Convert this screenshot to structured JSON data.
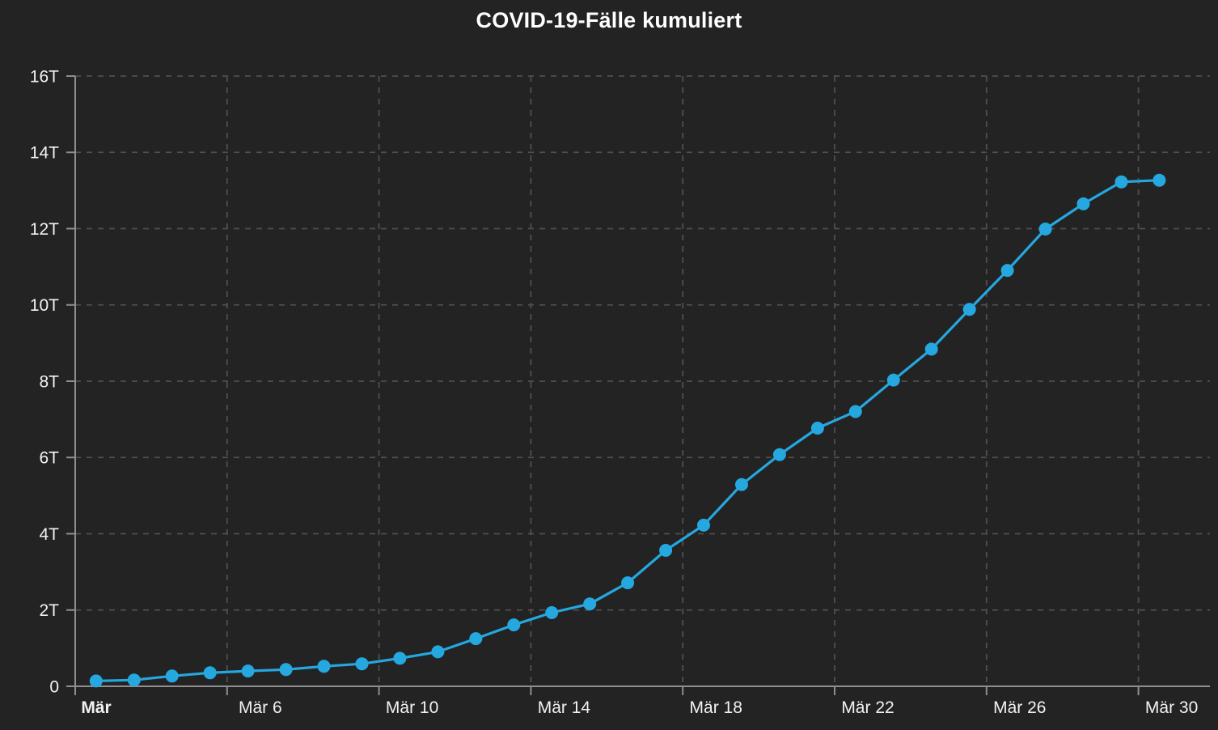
{
  "page": {
    "background_color": "#232323",
    "text_color": "#f2f2f2"
  },
  "chart_data": {
    "type": "line",
    "title": "COVID-19-Fälle kumuliert",
    "xlabel": "",
    "ylabel": "",
    "ylim": [
      0,
      16000
    ],
    "grid": "dashed",
    "legend": "none",
    "line_color": "#25a7e0",
    "marker": "circle",
    "x": [
      "Mär 2",
      "Mär 3",
      "Mär 4",
      "Mär 5",
      "Mär 6",
      "Mär 7",
      "Mär 8",
      "Mär 9",
      "Mär 10",
      "Mär 11",
      "Mär 12",
      "Mär 13",
      "Mär 14",
      "Mär 15",
      "Mär 16",
      "Mär 17",
      "Mär 18",
      "Mär 19",
      "Mär 20",
      "Mär 21",
      "Mär 22",
      "Mär 23",
      "Mär 24",
      "Mär 25",
      "Mär 26",
      "Mär 27",
      "Mär 28",
      "Mär 29",
      "Mär 30"
    ],
    "values": [
      140,
      165,
      270,
      355,
      400,
      440,
      525,
      590,
      735,
      905,
      1250,
      1610,
      1930,
      2160,
      2715,
      3565,
      4225,
      5290,
      6075,
      6770,
      7205,
      8030,
      8840,
      9885,
      10905,
      11990,
      12650,
      13225,
      13270
    ],
    "y_ticks": [
      {
        "label": "0",
        "value": 0
      },
      {
        "label": "2T",
        "value": 2000
      },
      {
        "label": "4T",
        "value": 4000
      },
      {
        "label": "6T",
        "value": 6000
      },
      {
        "label": "8T",
        "value": 8000
      },
      {
        "label": "10T",
        "value": 10000
      },
      {
        "label": "12T",
        "value": 12000
      },
      {
        "label": "14T",
        "value": 14000
      },
      {
        "label": "16T",
        "value": 16000
      }
    ],
    "x_ticks": [
      {
        "label": "Mär",
        "bold": true,
        "day_index": 0
      },
      {
        "label": "Mär 6",
        "bold": false,
        "day_index": 4
      },
      {
        "label": "Mär 10",
        "bold": false,
        "day_index": 8
      },
      {
        "label": "Mär 14",
        "bold": false,
        "day_index": 12
      },
      {
        "label": "Mär 18",
        "bold": false,
        "day_index": 16
      },
      {
        "label": "Mär 22",
        "bold": false,
        "day_index": 20
      },
      {
        "label": "Mär 26",
        "bold": false,
        "day_index": 24
      },
      {
        "label": "Mär 30",
        "bold": false,
        "day_index": 28
      }
    ]
  }
}
